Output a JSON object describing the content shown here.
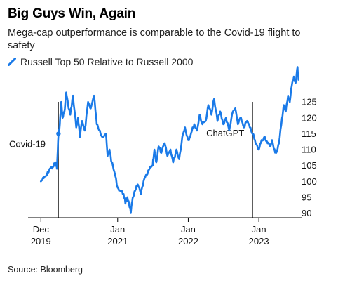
{
  "title": "Big Guys Win, Again",
  "subtitle": "Mega-cap outperformance is comparable to the Covid-19 flight to safety",
  "source": "Source: Bloomberg",
  "colors": {
    "line": "#1a7ae8",
    "axis": "#000000",
    "annotation_line": "#333333"
  },
  "chart_data": {
    "type": "line",
    "title": "Big Guys Win, Again",
    "subtitle": "Mega-cap outperformance is comparable to the Covid-19 flight to safety",
    "series": [
      {
        "name": "Russell Top 50 Relative to Russell 2000",
        "points": [
          [
            "2019-12-01",
            100
          ],
          [
            "2019-12-16",
            101
          ],
          [
            "2020-01-01",
            102
          ],
          [
            "2020-01-16",
            104
          ],
          [
            "2020-02-01",
            104.5
          ],
          [
            "2020-02-15",
            106
          ],
          [
            "2020-02-22",
            104
          ],
          [
            "2020-03-01",
            115
          ],
          [
            "2020-03-08",
            118
          ],
          [
            "2020-03-15",
            125
          ],
          [
            "2020-03-22",
            120
          ],
          [
            "2020-04-01",
            122
          ],
          [
            "2020-04-10",
            128
          ],
          [
            "2020-04-20",
            124
          ],
          [
            "2020-05-01",
            121
          ],
          [
            "2020-05-15",
            127
          ],
          [
            "2020-06-01",
            117
          ],
          [
            "2020-06-10",
            120
          ],
          [
            "2020-06-20",
            114
          ],
          [
            "2020-07-01",
            119
          ],
          [
            "2020-07-15",
            116
          ],
          [
            "2020-08-01",
            125
          ],
          [
            "2020-08-15",
            123
          ],
          [
            "2020-09-01",
            127
          ],
          [
            "2020-09-15",
            118
          ],
          [
            "2020-10-01",
            116
          ],
          [
            "2020-10-15",
            114
          ],
          [
            "2020-11-01",
            115
          ],
          [
            "2020-11-10",
            108
          ],
          [
            "2020-11-20",
            110
          ],
          [
            "2020-12-01",
            106
          ],
          [
            "2020-12-15",
            103
          ],
          [
            "2021-01-01",
            98
          ],
          [
            "2021-01-15",
            97
          ],
          [
            "2021-02-01",
            96
          ],
          [
            "2021-02-10",
            93
          ],
          [
            "2021-02-20",
            95
          ],
          [
            "2021-03-01",
            93
          ],
          [
            "2021-03-10",
            90
          ],
          [
            "2021-03-20",
            95
          ],
          [
            "2021-04-01",
            97
          ],
          [
            "2021-04-15",
            99
          ],
          [
            "2021-05-01",
            96
          ],
          [
            "2021-05-15",
            100
          ],
          [
            "2021-06-01",
            102
          ],
          [
            "2021-06-15",
            104
          ],
          [
            "2021-07-01",
            105
          ],
          [
            "2021-07-10",
            110
          ],
          [
            "2021-07-20",
            106
          ],
          [
            "2021-08-01",
            111
          ],
          [
            "2021-08-15",
            109
          ],
          [
            "2021-09-01",
            112
          ],
          [
            "2021-09-15",
            108
          ],
          [
            "2021-10-01",
            110
          ],
          [
            "2021-10-15",
            106
          ],
          [
            "2021-11-01",
            110
          ],
          [
            "2021-11-15",
            107
          ],
          [
            "2021-12-01",
            114
          ],
          [
            "2021-12-15",
            117
          ],
          [
            "2022-01-01",
            113
          ],
          [
            "2022-01-15",
            115
          ],
          [
            "2022-02-01",
            118
          ],
          [
            "2022-02-15",
            116
          ],
          [
            "2022-03-01",
            121
          ],
          [
            "2022-03-15",
            118
          ],
          [
            "2022-04-01",
            119
          ],
          [
            "2022-04-15",
            124
          ],
          [
            "2022-05-01",
            121
          ],
          [
            "2022-05-15",
            126
          ],
          [
            "2022-06-01",
            119
          ],
          [
            "2022-06-15",
            122
          ],
          [
            "2022-07-01",
            118
          ],
          [
            "2022-07-15",
            120
          ],
          [
            "2022-08-01",
            116
          ],
          [
            "2022-08-15",
            121
          ],
          [
            "2022-09-01",
            123
          ],
          [
            "2022-09-15",
            118
          ],
          [
            "2022-10-01",
            120
          ],
          [
            "2022-10-15",
            117
          ],
          [
            "2022-11-01",
            119
          ],
          [
            "2022-11-15",
            117
          ],
          [
            "2022-12-01",
            115
          ],
          [
            "2022-12-15",
            112
          ],
          [
            "2023-01-01",
            110
          ],
          [
            "2023-01-15",
            113
          ],
          [
            "2023-02-01",
            114
          ],
          [
            "2023-02-15",
            112
          ],
          [
            "2023-03-01",
            111
          ],
          [
            "2023-03-10",
            113
          ],
          [
            "2023-03-20",
            110
          ],
          [
            "2023-04-01",
            109
          ],
          [
            "2023-04-15",
            112
          ],
          [
            "2023-05-01",
            120
          ],
          [
            "2023-05-10",
            124
          ],
          [
            "2023-05-20",
            122
          ],
          [
            "2023-06-01",
            127
          ],
          [
            "2023-06-10",
            125
          ],
          [
            "2023-06-20",
            130
          ],
          [
            "2023-07-01",
            133
          ],
          [
            "2023-07-10",
            131
          ],
          [
            "2023-07-20",
            136
          ],
          [
            "2023-07-25",
            132
          ]
        ]
      }
    ],
    "x_ticks": [
      {
        "date": "2019-12-01",
        "line1": "Dec",
        "line2": "2019"
      },
      {
        "date": "2021-01-01",
        "line1": "Jan",
        "line2": "2021"
      },
      {
        "date": "2022-01-01",
        "line1": "Jan",
        "line2": "2022"
      },
      {
        "date": "2023-01-01",
        "line1": "Jan",
        "line2": "2023"
      }
    ],
    "y_ticks": [
      90,
      95,
      100,
      105,
      110,
      115,
      120,
      125
    ],
    "xlim": [
      "2019-11-01",
      "2023-09-15"
    ],
    "ylim": [
      89,
      135
    ],
    "annotations": [
      {
        "label": "Covid-19",
        "date": "2020-03-01",
        "type": "marker",
        "value": 115
      },
      {
        "label": "ChatGPT",
        "date": "2022-11-30",
        "type": "vline"
      }
    ],
    "grid": false,
    "legend_position": "top-left",
    "y_axis_side": "right"
  }
}
